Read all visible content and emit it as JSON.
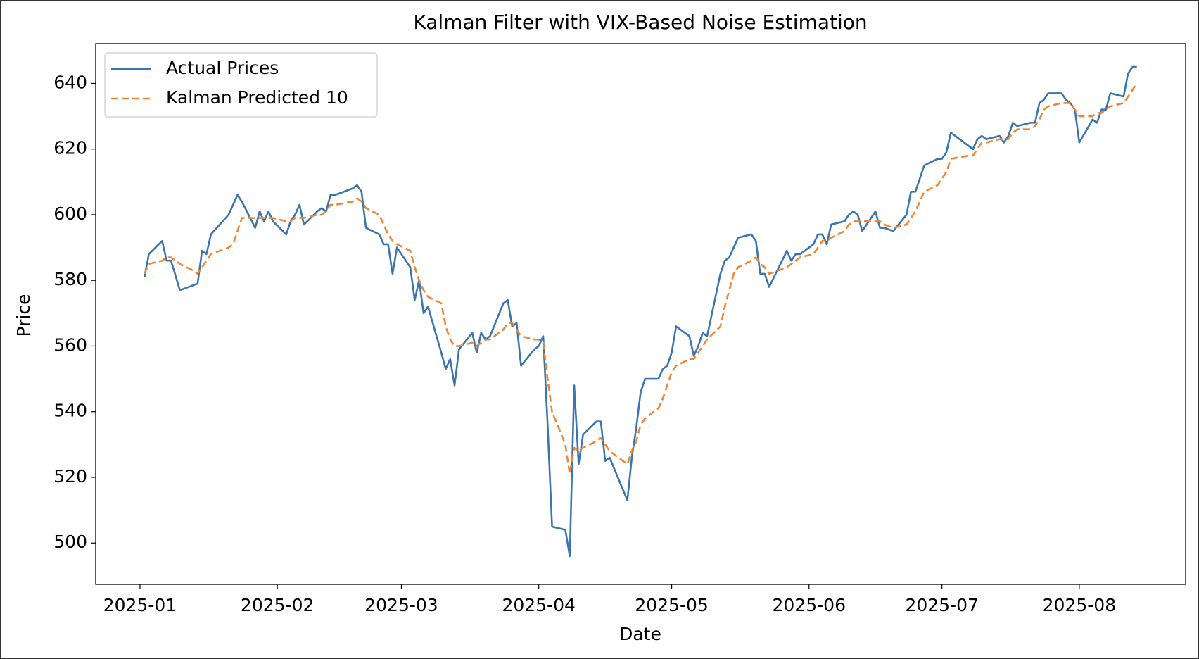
{
  "chart_data": {
    "type": "line",
    "title": "Kalman Filter with VIX-Based Noise Estimation",
    "x_label": "Date",
    "y_label": "Price",
    "x": [
      "2025-01-02",
      "2025-01-03",
      "2025-01-06",
      "2025-01-07",
      "2025-01-08",
      "2025-01-10",
      "2025-01-13",
      "2025-01-14",
      "2025-01-15",
      "2025-01-16",
      "2025-01-17",
      "2025-01-21",
      "2025-01-22",
      "2025-01-23",
      "2025-01-24",
      "2025-01-27",
      "2025-01-28",
      "2025-01-29",
      "2025-01-30",
      "2025-01-31",
      "2025-02-03",
      "2025-02-04",
      "2025-02-05",
      "2025-02-06",
      "2025-02-07",
      "2025-02-10",
      "2025-02-11",
      "2025-02-12",
      "2025-02-13",
      "2025-02-14",
      "2025-02-18",
      "2025-02-19",
      "2025-02-20",
      "2025-02-21",
      "2025-02-24",
      "2025-02-25",
      "2025-02-26",
      "2025-02-27",
      "2025-02-28",
      "2025-03-03",
      "2025-03-04",
      "2025-03-05",
      "2025-03-06",
      "2025-03-07",
      "2025-03-10",
      "2025-03-11",
      "2025-03-12",
      "2025-03-13",
      "2025-03-14",
      "2025-03-17",
      "2025-03-18",
      "2025-03-19",
      "2025-03-20",
      "2025-03-21",
      "2025-03-24",
      "2025-03-25",
      "2025-03-26",
      "2025-03-27",
      "2025-03-28",
      "2025-03-31",
      "2025-04-01",
      "2025-04-02",
      "2025-04-03",
      "2025-04-04",
      "2025-04-07",
      "2025-04-08",
      "2025-04-09",
      "2025-04-10",
      "2025-04-11",
      "2025-04-14",
      "2025-04-15",
      "2025-04-16",
      "2025-04-17",
      "2025-04-21",
      "2025-04-22",
      "2025-04-23",
      "2025-04-24",
      "2025-04-25",
      "2025-04-28",
      "2025-04-29",
      "2025-04-30",
      "2025-05-01",
      "2025-05-02",
      "2025-05-05",
      "2025-05-06",
      "2025-05-07",
      "2025-05-08",
      "2025-05-09",
      "2025-05-12",
      "2025-05-13",
      "2025-05-14",
      "2025-05-15",
      "2025-05-16",
      "2025-05-19",
      "2025-05-20",
      "2025-05-21",
      "2025-05-22",
      "2025-05-23",
      "2025-05-27",
      "2025-05-28",
      "2025-05-29",
      "2025-05-30",
      "2025-06-02",
      "2025-06-03",
      "2025-06-04",
      "2025-06-05",
      "2025-06-06",
      "2025-06-09",
      "2025-06-10",
      "2025-06-11",
      "2025-06-12",
      "2025-06-13",
      "2025-06-16",
      "2025-06-17",
      "2025-06-18",
      "2025-06-20",
      "2025-06-23",
      "2025-06-24",
      "2025-06-25",
      "2025-06-26",
      "2025-06-27",
      "2025-06-30",
      "2025-07-01",
      "2025-07-02",
      "2025-07-03",
      "2025-07-07",
      "2025-07-08",
      "2025-07-09",
      "2025-07-10",
      "2025-07-11",
      "2025-07-14",
      "2025-07-15",
      "2025-07-16",
      "2025-07-17",
      "2025-07-18",
      "2025-07-21",
      "2025-07-22",
      "2025-07-23",
      "2025-07-24",
      "2025-07-25",
      "2025-07-28",
      "2025-07-29",
      "2025-07-30",
      "2025-07-31",
      "2025-08-01",
      "2025-08-04",
      "2025-08-05",
      "2025-08-06",
      "2025-08-07",
      "2025-08-08",
      "2025-08-11",
      "2025-08-12",
      "2025-08-13",
      "2025-08-14"
    ],
    "series": [
      {
        "name": "Actual Prices",
        "color": "#3b75af",
        "dash": false,
        "values": [
          581,
          588,
          592,
          586,
          586,
          577,
          578.5,
          579,
          589,
          588,
          594,
          600,
          603,
          606,
          604,
          596,
          601,
          598,
          601,
          598,
          594,
          598,
          600,
          603,
          597,
          601,
          602,
          601,
          606,
          606,
          608,
          609,
          607,
          596,
          594,
          591,
          591,
          582,
          590,
          584,
          574,
          580,
          570,
          572,
          558,
          553,
          556,
          548,
          559,
          564,
          558,
          564,
          562,
          563,
          573,
          574,
          566,
          567,
          554,
          559,
          560,
          563,
          536,
          505,
          504,
          496,
          548,
          524,
          533,
          537,
          537,
          525,
          526,
          513,
          526,
          535,
          546,
          550,
          550,
          553,
          554,
          558,
          566,
          563,
          557,
          560,
          564,
          563,
          582,
          586,
          587,
          590,
          593,
          594,
          592,
          582,
          582,
          578,
          589,
          586,
          588,
          588,
          591,
          594,
          594,
          591,
          597,
          598,
          600,
          601,
          600,
          595,
          601,
          596,
          596,
          595,
          600,
          607,
          607,
          611,
          615,
          617,
          617,
          619,
          625,
          621,
          620,
          623,
          624,
          623,
          624,
          622,
          624,
          628,
          627,
          628,
          628,
          634,
          635,
          637,
          637,
          635,
          634,
          632,
          622,
          629,
          628,
          632,
          632,
          637,
          636,
          643,
          645,
          645
        ]
      },
      {
        "name": "Kalman Predicted 10",
        "color": "#ef8636",
        "dash": true,
        "values": [
          582,
          585,
          586,
          587,
          587,
          585,
          583,
          582,
          584,
          586,
          588,
          590,
          591,
          595,
          599,
          599,
          599,
          599,
          599,
          599,
          598,
          598,
          599,
          599,
          599,
          600,
          600,
          601,
          603,
          603,
          604,
          605,
          604,
          602,
          600,
          597,
          594,
          592,
          591,
          589,
          584,
          580,
          577,
          575,
          573,
          566,
          562,
          560,
          560,
          561,
          560,
          561,
          562,
          562,
          565,
          567,
          567,
          565,
          563,
          562,
          562,
          561,
          550,
          540,
          530,
          521,
          529,
          528,
          529,
          531,
          532,
          530,
          528,
          524,
          528,
          531,
          536,
          538,
          541,
          544,
          548,
          552,
          554,
          556,
          556,
          558,
          560,
          562,
          566,
          572,
          577,
          582,
          584,
          586,
          587,
          585,
          584,
          582,
          584,
          585,
          586,
          587,
          588,
          590,
          592,
          592,
          593,
          595,
          597,
          598,
          598,
          598,
          598,
          598,
          597,
          596,
          597,
          599,
          601,
          604,
          607,
          609,
          611,
          613,
          617,
          618,
          618,
          620,
          622,
          622,
          623,
          623,
          623,
          625,
          626,
          626,
          627,
          629,
          632,
          633,
          634,
          634,
          634,
          632,
          630,
          630,
          631,
          631,
          632,
          633,
          634,
          636,
          638,
          640
        ]
      }
    ],
    "xlim": [
      "2024-12-22",
      "2025-08-25"
    ],
    "xticks": [
      "2025-01",
      "2025-02",
      "2025-03",
      "2025-04",
      "2025-05",
      "2025-06",
      "2025-07",
      "2025-08"
    ],
    "ylim": [
      487.4,
      652.1
    ],
    "yticks": [
      500,
      520,
      540,
      560,
      580,
      600,
      620,
      640
    ],
    "legend": "upper left",
    "grid": false
  }
}
